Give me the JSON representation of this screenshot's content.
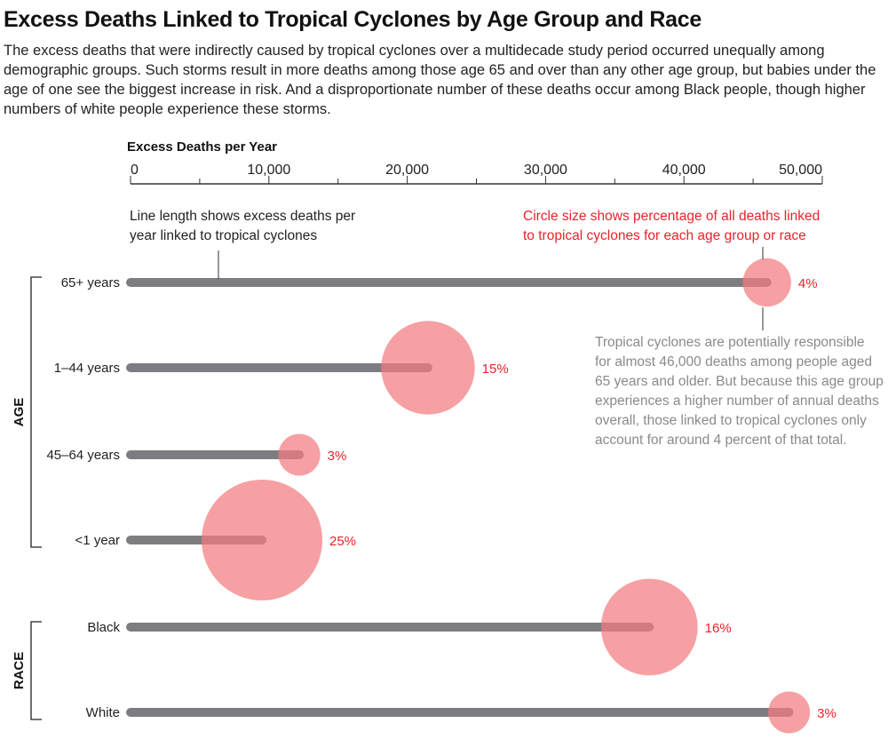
{
  "title": "Excess Deaths Linked to Tropical Cyclones by Age Group and Race",
  "subtitle": "The excess deaths that were indirectly caused by tropical cyclones over a multidecade study period occurred unequally among demographic groups. Such storms result in more deaths among those age 65 and over than any other age group, but babies under the age of one see the biggest increase in risk. And a disproportionate number of these deaths occur among Black people, though higher numbers of white people experience these storms.",
  "chart_data": {
    "type": "dot-line",
    "xlabel": "Excess Deaths per Year",
    "xlim": [
      0,
      50000
    ],
    "xticks": [
      "0",
      "10,000",
      "20,000",
      "30,000",
      "40,000",
      "50,000"
    ],
    "groups": [
      {
        "label": "AGE",
        "rows": [
          {
            "category": "65+ years",
            "excess_deaths": 46000,
            "percent": 4,
            "percent_label": "4%"
          },
          {
            "category": "1–44 years",
            "excess_deaths": 21500,
            "percent": 15,
            "percent_label": "15%"
          },
          {
            "category": "45–64 years",
            "excess_deaths": 12200,
            "percent": 3,
            "percent_label": "3%"
          },
          {
            "category": "<1 year",
            "excess_deaths": 9500,
            "percent": 25,
            "percent_label": "25%"
          }
        ]
      },
      {
        "label": "RACE",
        "rows": [
          {
            "category": "Black",
            "excess_deaths": 37500,
            "percent": 16,
            "percent_label": "16%"
          },
          {
            "category": "White",
            "excess_deaths": 47600,
            "percent": 3,
            "percent_label": "3%"
          }
        ]
      }
    ],
    "annotations": {
      "line_legend": [
        "Line length shows excess deaths per",
        "year linked to tropical cyclones"
      ],
      "circle_legend": [
        "Circle size shows percentage of all deaths linked",
        "to tropical cyclones for each age group or race"
      ],
      "note": [
        "Tropical cyclones are potentially responsible",
        "for almost 46,000 deaths among people aged",
        "65 years and older. But because this age group",
        "experiences a higher number of annual deaths",
        "overall, those linked to tropical cyclones only",
        "account for around 4 percent of that total."
      ]
    },
    "colors": {
      "line": "#7d7c80",
      "circle": "#f27c80",
      "percent_label": "#e8232a",
      "note": "#8a8a8a"
    }
  }
}
